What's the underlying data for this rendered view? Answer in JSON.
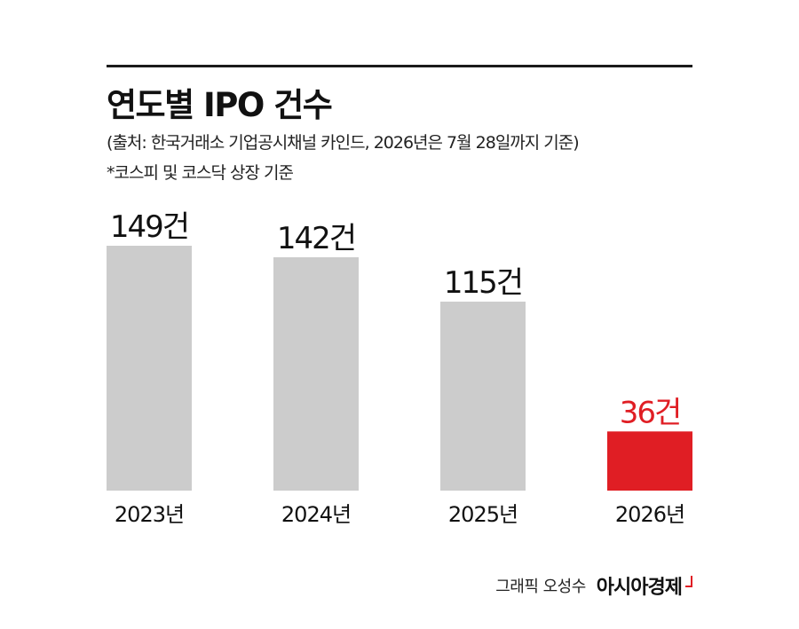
{
  "header": {
    "title": "연도별 IPO 건수",
    "source": "(출처: 한국거래소 기업공시채널 카인드, 2026년은 7월 28일까지 기준)",
    "note": "*코스피 및 코스닥 상장 기준"
  },
  "footer": {
    "credit": "그래픽 오성수",
    "brand": "아시아경제"
  },
  "chart_data": {
    "type": "bar",
    "title": "연도별 IPO 건수",
    "categories": [
      "2023년",
      "2024년",
      "2025년",
      "2026년"
    ],
    "values": [
      149,
      142,
      115,
      36
    ],
    "data_labels": [
      "149건",
      "142건",
      "115건",
      "36건"
    ],
    "xlabel": "",
    "ylabel": "",
    "ylim": [
      0,
      149
    ],
    "grid": false,
    "legend": "none",
    "colors": {
      "default": "#cccccc",
      "highlight": "#e01e24",
      "highlight_label": "#e01e24",
      "label": "#111111"
    },
    "highlight_index": 3
  }
}
